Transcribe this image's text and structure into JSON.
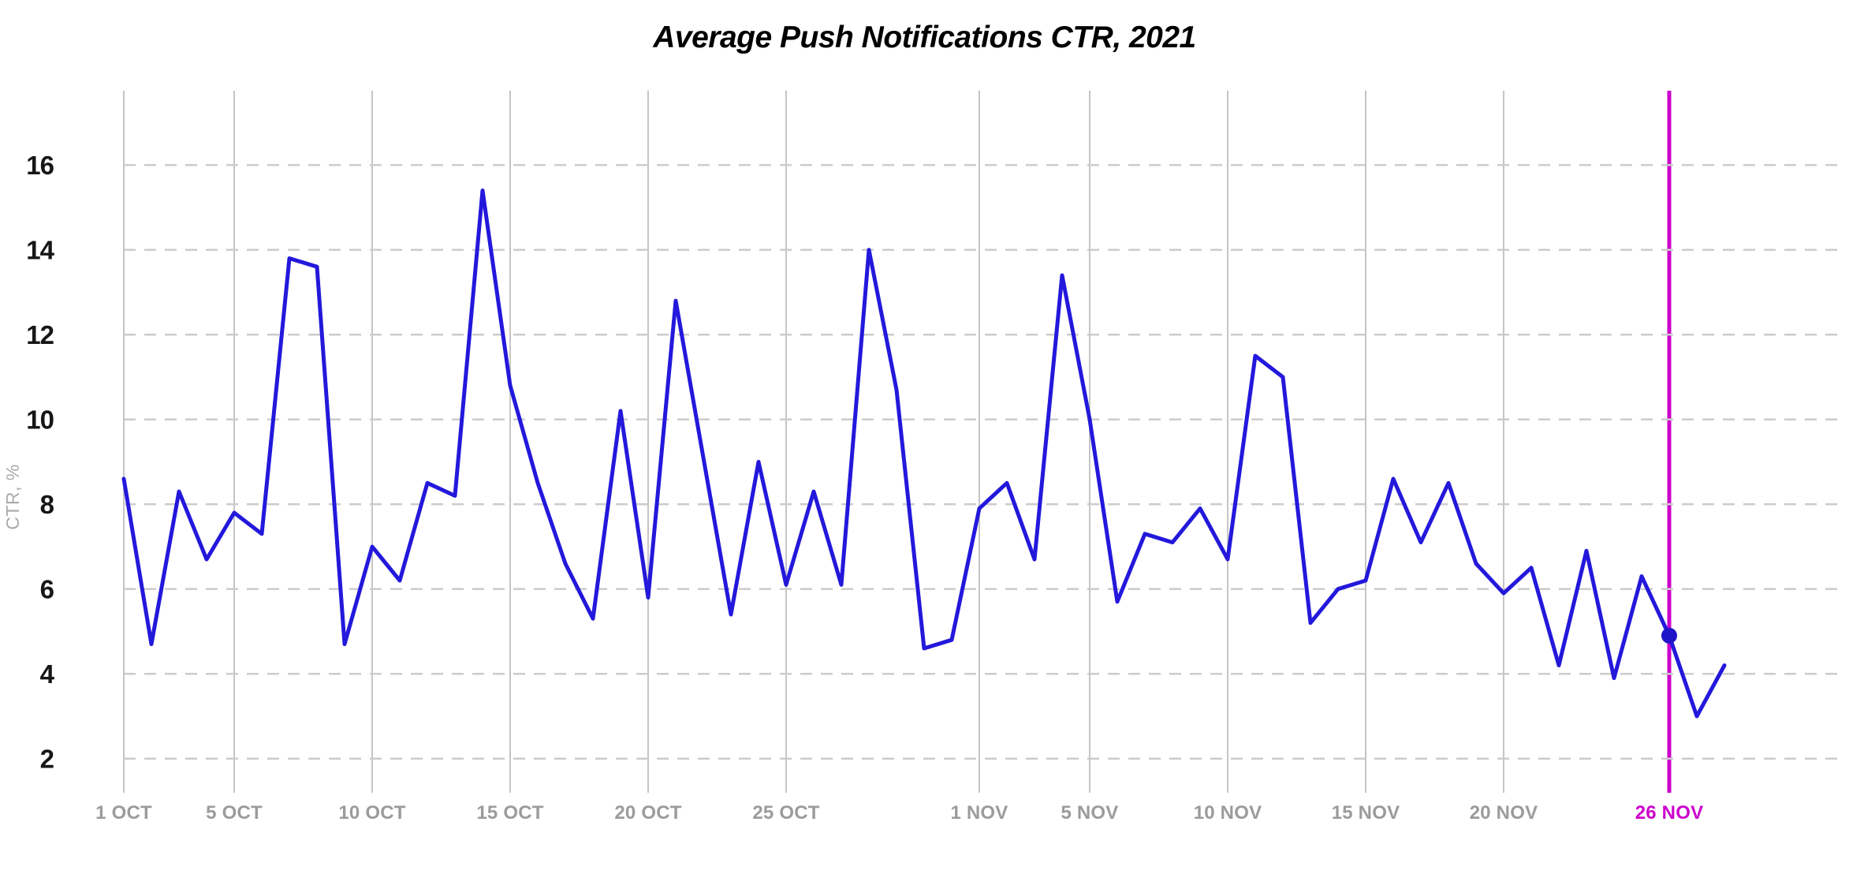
{
  "chart_data": {
    "type": "line",
    "title": "Average Push Notifications CTR, 2021",
    "ylabel": "CTR, %",
    "xlabel": "",
    "ylim": [
      1.4,
      17.8
    ],
    "grid": "horizontal dashed + vertical solid at labeled dates",
    "legend": "none",
    "x": [
      "1 Oct",
      "2 Oct",
      "3 Oct",
      "4 Oct",
      "5 Oct",
      "6 Oct",
      "7 Oct",
      "8 Oct",
      "9 Oct",
      "10 Oct",
      "11 Oct",
      "12 Oct",
      "13 Oct",
      "14 Oct",
      "15 Oct",
      "16 Oct",
      "17 Oct",
      "18 Oct",
      "19 Oct",
      "20 Oct",
      "21 Oct",
      "22 Oct",
      "23 Oct",
      "24 Oct",
      "25 Oct",
      "26 Oct",
      "27 Oct",
      "28 Oct",
      "29 Oct",
      "30 Oct",
      "31 Oct",
      "1 Nov",
      "2 Nov",
      "3 Nov",
      "4 Nov",
      "5 Nov",
      "6 Nov",
      "7 Nov",
      "8 Nov",
      "9 Nov",
      "10 Nov",
      "11 Nov",
      "12 Nov",
      "13 Nov",
      "14 Nov",
      "15 Nov",
      "16 Nov",
      "17 Nov",
      "18 Nov",
      "19 Nov",
      "20 Nov",
      "21 Nov",
      "22 Nov",
      "23 Nov",
      "24 Nov",
      "25 Nov",
      "26 Nov",
      "27 Nov",
      "28 Nov"
    ],
    "values": [
      8.6,
      4.7,
      8.3,
      6.7,
      7.8,
      7.3,
      13.8,
      13.6,
      4.7,
      7.0,
      6.2,
      8.5,
      8.2,
      15.4,
      10.8,
      8.5,
      6.6,
      5.3,
      10.2,
      5.8,
      12.8,
      9.1,
      5.4,
      9.0,
      6.1,
      8.3,
      6.1,
      14.0,
      10.7,
      4.6,
      4.8,
      7.9,
      8.5,
      6.7,
      13.4,
      10.0,
      5.7,
      7.3,
      7.1,
      7.9,
      6.7,
      11.5,
      11.0,
      5.2,
      6.0,
      6.2,
      8.6,
      7.1,
      8.5,
      6.6,
      5.9,
      6.5,
      4.2,
      6.9,
      3.9,
      6.3,
      4.9,
      3.0,
      4.2
    ],
    "y_ticks": [
      16,
      14,
      12,
      10,
      8,
      6,
      4,
      2
    ],
    "x_ticks": [
      {
        "label": "1 OCT",
        "day": 0,
        "highlight": false
      },
      {
        "label": "5 OCT",
        "day": 4,
        "highlight": false
      },
      {
        "label": "10 OCT",
        "day": 9,
        "highlight": false
      },
      {
        "label": "15 OCT",
        "day": 14,
        "highlight": false
      },
      {
        "label": "20 OCT",
        "day": 19,
        "highlight": false
      },
      {
        "label": "25 OCT",
        "day": 24,
        "highlight": false
      },
      {
        "label": "1 NOV",
        "day": 31,
        "highlight": false
      },
      {
        "label": "5 NOV",
        "day": 35,
        "highlight": false
      },
      {
        "label": "10 NOV",
        "day": 40,
        "highlight": false
      },
      {
        "label": "15 NOV",
        "day": 45,
        "highlight": false
      },
      {
        "label": "20 NOV",
        "day": 50,
        "highlight": false
      },
      {
        "label": "26 NOV",
        "day": 56,
        "highlight": true
      }
    ],
    "highlight": {
      "label": "26 NOV",
      "date": "26 Nov",
      "value": 4.9,
      "day_index": 56,
      "marker": "filled-dot-on-vertical-line"
    }
  },
  "colors": {
    "line": "#2318db",
    "marker_dot": "#2014c8",
    "highlight_line": "#cc00cc",
    "highlight_label": "#cc00cc",
    "grid_dashed": "#cccccc",
    "grid_solid": "#c5c5c5",
    "y_tick_text": "#161616",
    "x_tick_text": "#9b9b9b",
    "title_text": "#000000",
    "y_axis_title_text": "#a9a9a9",
    "background": "#ffffff"
  }
}
